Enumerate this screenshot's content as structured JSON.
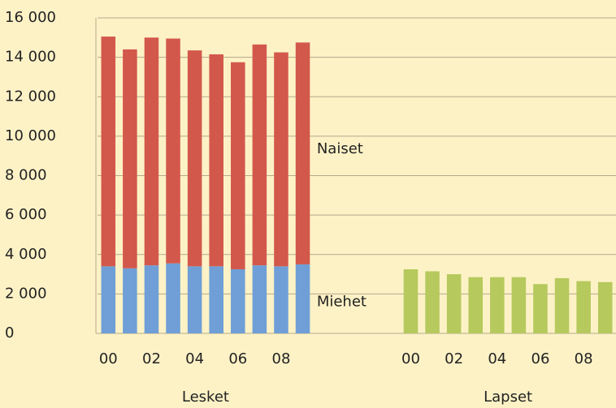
{
  "chart_data": {
    "type": "bar",
    "stacked": true,
    "categories": [
      "00",
      null,
      "02",
      null,
      "04",
      null,
      "06",
      null,
      "08",
      null
    ],
    "ylim": [
      0,
      16000
    ],
    "yticks": [
      0,
      {
        "value": 2000,
        "label": "2 000"
      },
      {
        "value": 4000,
        "label": "4 000"
      },
      {
        "value": 6000,
        "label": "6 000"
      },
      {
        "value": 8000,
        "label": "8 000"
      },
      {
        "value": 10000,
        "label": "10 000"
      },
      {
        "value": 12000,
        "label": "12 000"
      },
      {
        "value": 14000,
        "label": "14 000"
      },
      {
        "value": 16000,
        "label": "16 000"
      }
    ],
    "grid": true,
    "groups": [
      {
        "name": "Lesket",
        "series": [
          {
            "name": "Miehet",
            "color": "#6f9fd6",
            "values": [
              3400,
              3300,
              3450,
              3550,
              3400,
              3400,
              3250,
              3450,
              3400,
              3500
            ]
          },
          {
            "name": "Naiset",
            "color": "#d3584c",
            "values": [
              11650,
              11100,
              11550,
              11400,
              10950,
              10750,
              10500,
              11200,
              10850,
              11250
            ]
          }
        ]
      },
      {
        "name": "Lapset",
        "series": [
          {
            "color": "#b6c95d",
            "values": [
              3250,
              3150,
              3000,
              2850,
              2850,
              2850,
              2500,
              2800,
              2650,
              2600
            ]
          }
        ]
      }
    ]
  }
}
